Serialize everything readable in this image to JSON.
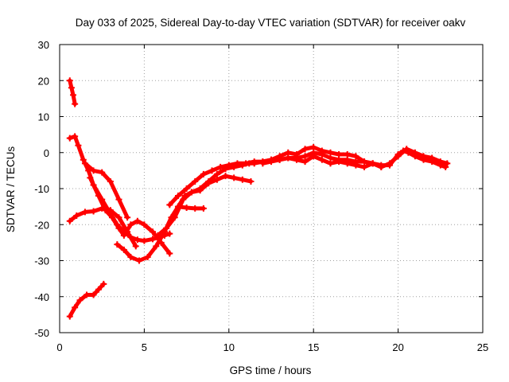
{
  "chart_data": {
    "type": "scatter",
    "title": "Day 033 of 2025, Sidereal Day-to-day VTEC variation (SDTVAR) for receiver oakv",
    "xlabel": "GPS time / hours",
    "ylabel": "SDTVAR / TECUs",
    "xlim": [
      0,
      25
    ],
    "ylim": [
      -50,
      30
    ],
    "xticks": [
      0,
      5,
      10,
      15,
      20,
      25
    ],
    "yticks": [
      30,
      20,
      10,
      0,
      -10,
      -20,
      -30,
      -40,
      -50
    ],
    "grid": true,
    "legend": "none",
    "marker": "plus",
    "color": "#ff0000",
    "series": [
      {
        "name": "track-1",
        "x": [
          0.6,
          0.7,
          0.8,
          0.9
        ],
        "y": [
          20,
          18,
          16,
          13.5
        ]
      },
      {
        "name": "track-2",
        "x": [
          0.6,
          0.9,
          1.1,
          1.4,
          1.7,
          2.0,
          2.5,
          3.0,
          3.4,
          3.8,
          4.2,
          4.6,
          5.0,
          5.5,
          5.9,
          6.2,
          6.5
        ],
        "y": [
          4,
          4.5,
          2,
          -2,
          -5,
          -9,
          -13,
          -17,
          -20,
          -22,
          -23.5,
          -24.2,
          -24.5,
          -24,
          -23.5,
          -23,
          -22.5
        ]
      },
      {
        "name": "track-3",
        "x": [
          1.5,
          2.0,
          2.5,
          3.0,
          3.5,
          4.0
        ],
        "y": [
          -3,
          -5,
          -5.5,
          -8,
          -13,
          -18
        ]
      },
      {
        "name": "track-4",
        "x": [
          1.8,
          2.3,
          2.7,
          3.1,
          3.5,
          3.8,
          4.2,
          4.6,
          5.0,
          5.5,
          6.0,
          6.5
        ],
        "y": [
          -7,
          -12,
          -16,
          -18,
          -21,
          -23,
          -20,
          -19,
          -20,
          -22,
          -25,
          -28
        ]
      },
      {
        "name": "track-5",
        "x": [
          0.6,
          1.0,
          1.5,
          2.0,
          2.5,
          3.0,
          3.5,
          4.0,
          4.5
        ],
        "y": [
          -19,
          -17.5,
          -16.5,
          -16.3,
          -15.5,
          -16,
          -18,
          -22,
          -26
        ]
      },
      {
        "name": "track-6",
        "x": [
          3.4,
          3.8,
          4.2,
          4.7,
          5.2,
          5.7,
          6.2,
          6.6,
          7.0,
          7.4,
          7.8,
          8.3,
          8.8,
          9.3,
          9.8,
          10.3,
          10.8,
          11.2,
          11.5,
          12.0,
          12.5,
          13.0,
          13.5,
          14.0,
          14.5,
          15.0,
          15.5,
          16.0,
          16.5,
          17.0,
          17.5,
          18.0,
          18.5,
          19.0,
          19.5,
          20.0,
          20.3,
          20.6,
          21.0,
          21.5,
          22.0,
          22.5,
          22.8
        ],
        "y": [
          -25.5,
          -27,
          -29,
          -30,
          -29,
          -26,
          -22,
          -18,
          -15,
          -12,
          -11,
          -10,
          -8,
          -6,
          -4.5,
          -4,
          -3.5,
          -3,
          -3,
          -2.5,
          -2,
          -2,
          -1.5,
          -1.5,
          -1,
          0,
          -0.5,
          -1.5,
          -2,
          -2,
          -2.5,
          -2.5,
          -3,
          -3.5,
          -3.5,
          -0.5,
          0.5,
          0,
          -1,
          -2,
          -2.5,
          -3.5,
          -4
        ]
      },
      {
        "name": "track-7",
        "x": [
          5.8,
          6.3,
          6.8,
          7.3,
          7.8,
          8.3,
          8.8,
          9.3,
          9.8,
          10.3,
          10.8,
          11.3
        ],
        "y": [
          -23,
          -21,
          -18,
          -13,
          -11,
          -10.5,
          -8.5,
          -7.5,
          -6.5,
          -7,
          -7.5,
          -8
        ]
      },
      {
        "name": "track-8",
        "x": [
          6.5,
          7.0,
          7.5,
          8.0,
          8.5,
          9.0,
          9.5,
          10.0,
          10.5,
          11.0,
          11.5,
          12.0,
          12.5,
          13.0,
          13.5,
          14.0,
          14.5,
          15.0,
          15.5,
          16.0,
          16.5,
          17.0,
          17.5,
          18.0,
          18.5,
          19.0,
          19.5,
          20.0,
          20.5,
          21.0,
          21.5,
          22.0,
          22.5,
          22.9
        ],
        "y": [
          -14.5,
          -12,
          -10,
          -8,
          -6,
          -5,
          -4,
          -3.5,
          -3,
          -3,
          -2.5,
          -2.5,
          -2,
          -1,
          0,
          -0.5,
          1,
          1.5,
          0.5,
          0,
          -0.5,
          -0.5,
          -1,
          -2.5,
          -3,
          -4,
          -3,
          -1,
          1,
          0,
          -1,
          -1.5,
          -2.5,
          -3
        ]
      },
      {
        "name": "track-9",
        "x": [
          7.0,
          7.5,
          8.0,
          8.5
        ],
        "y": [
          -15,
          -15.3,
          -15.5,
          -15.5
        ]
      },
      {
        "name": "track-10",
        "x": [
          12.0,
          12.5,
          13.0,
          13.5,
          14.0,
          14.5,
          15.0,
          15.5,
          16.0,
          16.5,
          17.0,
          17.5,
          18.0,
          18.5,
          19.0
        ],
        "y": [
          -3,
          -2.5,
          -2,
          -1.5,
          -2,
          -2.5,
          -1,
          -2,
          -3,
          -2.5,
          -3,
          -3.5,
          -4,
          -3,
          -4
        ]
      },
      {
        "name": "track-11",
        "x": [
          0.6,
          0.9,
          1.2,
          1.6,
          2.0,
          2.3,
          2.6
        ],
        "y": [
          -45.5,
          -43,
          -41,
          -39.5,
          -39.5,
          -38,
          -36.5
        ]
      }
    ]
  }
}
